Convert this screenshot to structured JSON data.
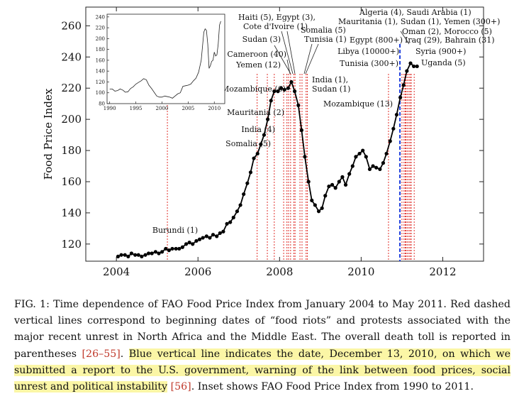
{
  "chart_data": {
    "type": "line",
    "title": "",
    "xlabel": "",
    "ylabel": "Food Price Index",
    "xlim": [
      2003.25,
      2013.0
    ],
    "ylim": [
      109,
      272
    ],
    "xticks": [
      2004,
      2006,
      2008,
      2010,
      2012
    ],
    "yticks": [
      120,
      140,
      160,
      180,
      200,
      220,
      240,
      260
    ],
    "series": [
      {
        "name": "",
        "x": [
          2004.04,
          2004.12,
          2004.21,
          2004.29,
          2004.37,
          2004.46,
          2004.54,
          2004.62,
          2004.71,
          2004.79,
          2004.87,
          2004.96,
          2005.04,
          2005.12,
          2005.21,
          2005.29,
          2005.37,
          2005.46,
          2005.54,
          2005.62,
          2005.71,
          2005.79,
          2005.87,
          2005.96,
          2006.04,
          2006.12,
          2006.21,
          2006.29,
          2006.37,
          2006.46,
          2006.54,
          2006.62,
          2006.71,
          2006.79,
          2006.87,
          2006.96,
          2007.04,
          2007.12,
          2007.21,
          2007.29,
          2007.37,
          2007.46,
          2007.54,
          2007.62,
          2007.71,
          2007.79,
          2007.87,
          2007.96,
          2008.04,
          2008.12,
          2008.21,
          2008.29,
          2008.37,
          2008.46,
          2008.54,
          2008.62,
          2008.71,
          2008.79,
          2008.87,
          2008.96,
          2009.04,
          2009.12,
          2009.21,
          2009.29,
          2009.37,
          2009.46,
          2009.54,
          2009.62,
          2009.71,
          2009.79,
          2009.87,
          2009.96,
          2010.04,
          2010.12,
          2010.21,
          2010.29,
          2010.37,
          2010.46,
          2010.54,
          2010.62,
          2010.71,
          2010.79,
          2010.87,
          2010.96,
          2011.04,
          2011.12,
          2011.21,
          2011.29,
          2011.37
        ],
        "values": [
          112,
          113,
          113,
          112,
          114,
          113,
          113,
          112,
          113,
          114,
          114,
          115,
          114,
          115,
          117,
          116,
          117,
          117,
          117,
          118,
          120,
          121,
          120,
          122,
          123,
          124,
          125,
          124,
          126,
          125,
          127,
          128,
          133,
          134,
          137,
          141,
          145,
          152,
          159,
          166,
          175,
          178,
          184,
          190,
          200,
          212,
          218,
          218,
          220,
          219,
          220,
          224,
          218,
          209,
          193,
          176,
          160,
          148,
          145,
          141,
          143,
          151,
          157,
          158,
          156,
          160,
          163,
          158,
          165,
          170,
          176,
          178,
          180,
          176,
          168,
          170,
          169,
          168,
          172,
          178,
          186,
          194,
          203,
          214,
          222,
          231,
          236,
          234,
          234
        ]
      }
    ],
    "inset": {
      "type": "line",
      "xlim": [
        1989.5,
        2012.0
      ],
      "ylim": [
        80,
        245
      ],
      "xticks": [
        1990,
        1995,
        2000,
        2005,
        2010
      ],
      "yticks": [
        80,
        100,
        120,
        140,
        160,
        180,
        200,
        220,
        240
      ],
      "x": [
        1990,
        1990.5,
        1991,
        1991.5,
        1992,
        1992.5,
        1993,
        1993.5,
        1994,
        1994.5,
        1995,
        1995.5,
        1996,
        1996.5,
        1997,
        1997.5,
        1998,
        1998.5,
        1999,
        1999.5,
        2000,
        2000.5,
        2001,
        2001.5,
        2002,
        2002.5,
        2003,
        2003.5,
        2004,
        2004.5,
        2005,
        2005.5,
        2006,
        2006.5,
        2007,
        2007.5,
        2008,
        2008.25,
        2008.5,
        2008.75,
        2009,
        2009.25,
        2009.5,
        2009.75,
        2010,
        2010.25,
        2010.5,
        2010.75,
        2011,
        2011.25
      ],
      "values": [
        107,
        107,
        103,
        104,
        107,
        105,
        101,
        102,
        108,
        111,
        116,
        119,
        122,
        126,
        124,
        114,
        108,
        101,
        94,
        92,
        92,
        94,
        93,
        92,
        90,
        94,
        98,
        100,
        112,
        113,
        114,
        116,
        122,
        127,
        138,
        160,
        212,
        218,
        215,
        190,
        145,
        150,
        158,
        160,
        175,
        168,
        170,
        190,
        225,
        232
      ]
    },
    "events": [
      {
        "label": "Burundi (1)",
        "x": 2005.25
      },
      {
        "label": "Somalia (5)",
        "x": 2007.45
      },
      {
        "label": "India (4)",
        "x": 2007.7
      },
      {
        "label": "Mauritania (2)",
        "x": 2007.87
      },
      {
        "label": "Mozambique (6)",
        "x": 2008.1
      },
      {
        "label": "Cameroon (40)",
        "x": 2008.18
      },
      {
        "label": "Yemen (12)",
        "x": 2008.22
      },
      {
        "label": "Sudan (3)",
        "x": 2008.27
      },
      {
        "label": "Haiti (5), Egypt (3),",
        "x": 2008.35
      },
      {
        "label": "Cote d'Ivoire (1)",
        "x": 2008.38
      },
      {
        "label": "Somalia (5)",
        "x": 2008.5
      },
      {
        "label": "Tunisia (1)",
        "x": 2008.55
      },
      {
        "label": "India (1),",
        "x": 2008.65
      },
      {
        "label": "Sudan (1)",
        "x": 2008.68
      },
      {
        "label": "Mozambique (13)",
        "x": 2010.67
      },
      {
        "label": "Tunisia (300+)",
        "x": 2011.0
      },
      {
        "label": "Libya (10000+)",
        "x": 2011.08
      },
      {
        "label": "Egypt (800+)",
        "x": 2011.1
      },
      {
        "label": "Algeria (4), Saudi Arabia (1)",
        "x": 2011.05
      },
      {
        "label": "Mauritania (1), Sudan (1), Yemen (300+)",
        "x": 2011.13
      },
      {
        "label": "Oman (2), Morocco (5)",
        "x": 2011.17
      },
      {
        "label": "Iraq (29), Bahrain (31)",
        "x": 2011.2
      },
      {
        "label": "Syria (900+)",
        "x": 2011.23
      },
      {
        "label": "Uganda (5)",
        "x": 2011.3
      }
    ],
    "report_line": {
      "x": 2010.95,
      "color": "#1f3fdd"
    },
    "colors": {
      "series": "#000000",
      "events": "#e0302b",
      "report": "#1f3fdd"
    }
  },
  "caption": {
    "fig": "FIG. 1:",
    "part1": " Time dependence of FAO Food Price Index from January 2004 to May 2011. Red dashed vertical lines correspond to beginning dates of “food riots” and protests associated with the major recent unrest in North Africa and the Middle East. The overall death toll is reported in parentheses ",
    "cite1": "[26–55]",
    "part2": ". ",
    "highlight": "Blue vertical line indicates the date, December 13, 2010, on which we submitted a report to the U.S. government, warning of the link between food prices, social unrest and political instability",
    "part3": " ",
    "cite2": "[56]",
    "part4": ". Inset shows FAO Food Price Index from 1990 to 2011."
  }
}
